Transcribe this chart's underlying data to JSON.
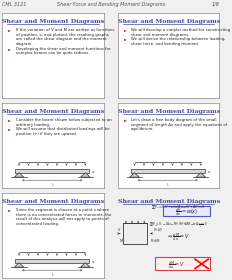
{
  "page_bg": "#f0f0f0",
  "header_text_left": "CML 3121",
  "header_text_center": "Shear Force and Bending Moment Diagrams",
  "header_text_right": "1/8",
  "title_color": "#4a4a9a",
  "underline_color": "#4a4a9a",
  "bullet_color": "#cc0000",
  "panel_bg": "#ffffff",
  "panel_border": "#888888",
  "panels": [
    {
      "title": "Shear and Moment Diagrams",
      "bullets": [
        "If the variation of V and M are written as functions\nof position, x, and plotted, the resulting graphs\nare called the shear diagram and the moment\ndiagram.",
        "Developing the shear and moment functions for\ncomplex beams can be quite tedious."
      ],
      "has_diagram": false,
      "has_equations": false
    },
    {
      "title": "Shear and Moment Diagrams",
      "bullets": [
        "We will develop a simpler method for constructing\nshear and moment diagrams.",
        "We will derive the relationship between loading,\nshear force, and bending moment."
      ],
      "has_diagram": false,
      "has_equations": false
    },
    {
      "title": "Shear and Moment Diagrams",
      "bullets": [
        "Consider the beam shown below subjected to an\narbitrary loading.",
        "We will assume that distributed loadings will be\npositive (+) if they are upward."
      ],
      "has_diagram": true,
      "has_equations": false
    },
    {
      "title": "Shear and Moment Diagrams",
      "bullets": [
        "Let's draw a free body diagram of the small\nsegment of length Δx and apply the equations of\nequilibrium."
      ],
      "has_diagram": true,
      "has_equations": false
    },
    {
      "title": "Shear and Moment Diagrams",
      "bullets": [
        "Since the segment is chosen at a point x where\nthere is no concentrated forces or moments, the\nresult of this analysis will not apply to points of\nconcentrated loading."
      ],
      "has_diagram": true,
      "has_equations": false
    },
    {
      "title": "Shear and Moment Diagrams",
      "bullets": [],
      "has_diagram": false,
      "has_equations": true
    }
  ]
}
